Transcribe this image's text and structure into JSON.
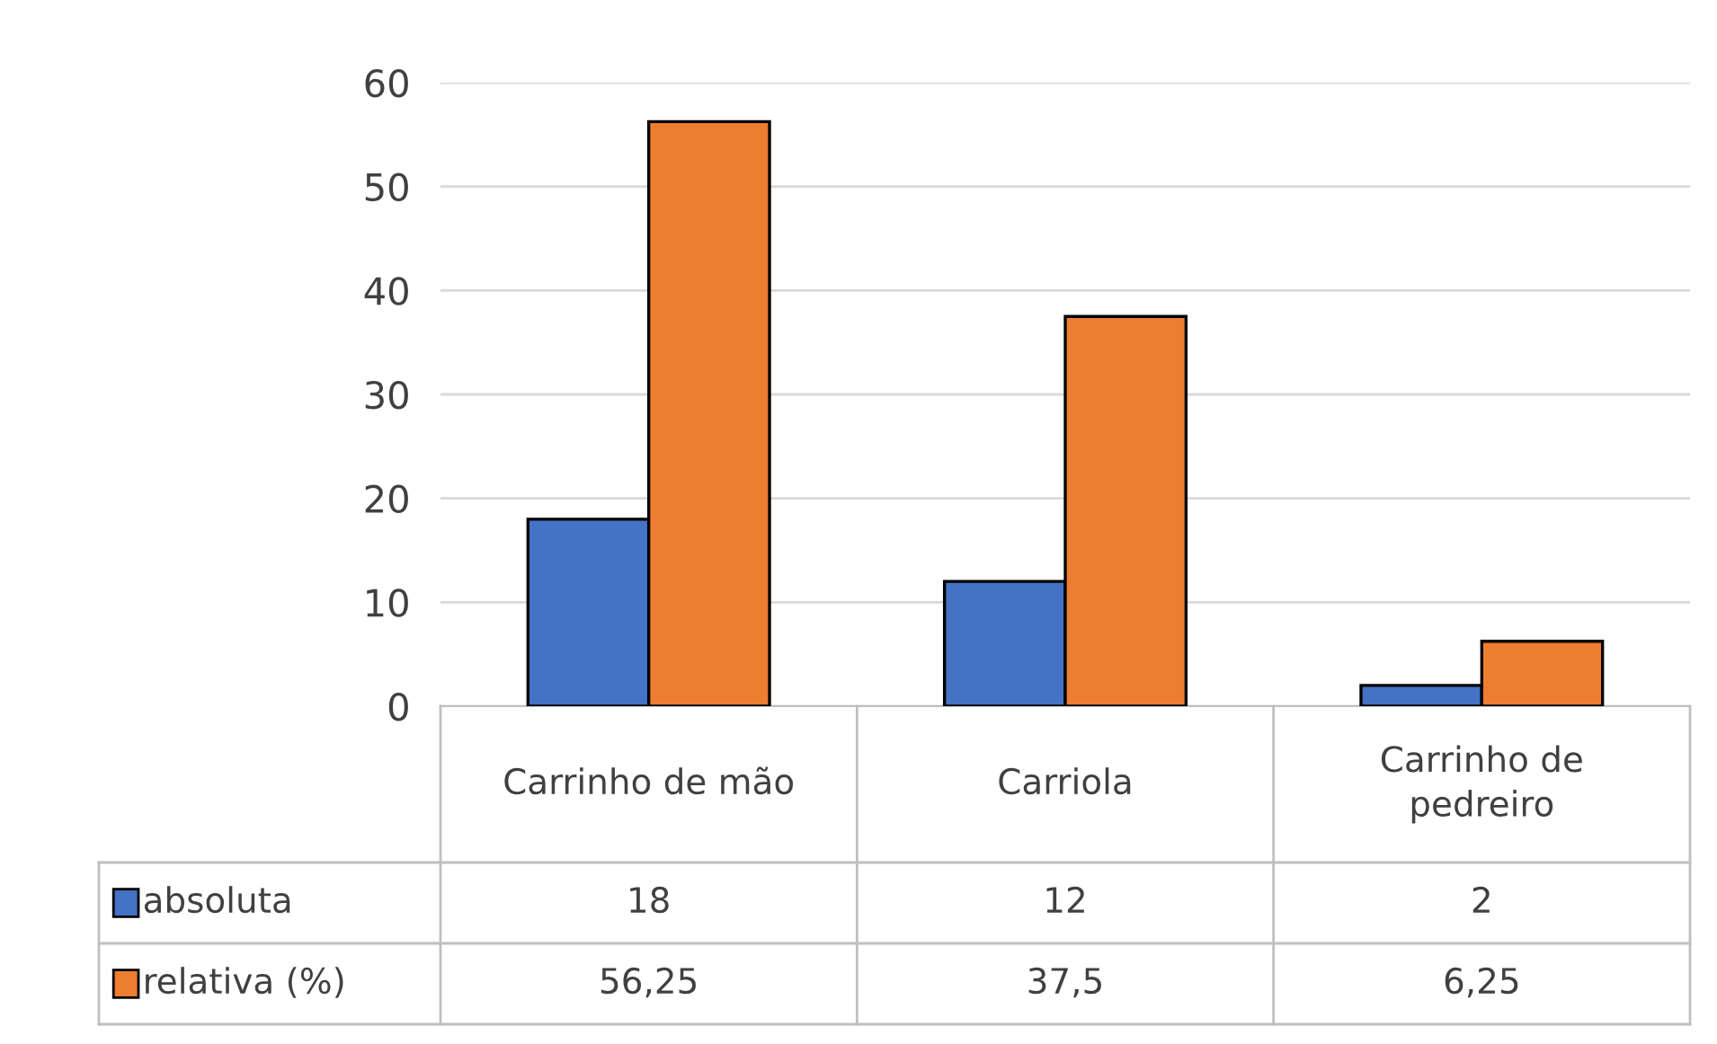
{
  "chart_data": {
    "type": "bar",
    "categories": [
      "Carrinho de mão",
      "Carriola",
      "Carrinho de pedreiro"
    ],
    "series": [
      {
        "name": "absoluta",
        "color": "#4472c4",
        "values": [
          18,
          12,
          2
        ],
        "value_labels": [
          "18",
          "12",
          "2"
        ]
      },
      {
        "name": "relativa (%)",
        "color": "#ed7d31",
        "values": [
          56.25,
          37.5,
          6.25
        ],
        "value_labels": [
          "56,25",
          "37,5",
          "6,25"
        ]
      }
    ],
    "ylim": [
      0,
      60
    ],
    "yticks": [
      0,
      10,
      20,
      30,
      40,
      50,
      60
    ],
    "grid": "y",
    "legend": "bottom left"
  }
}
